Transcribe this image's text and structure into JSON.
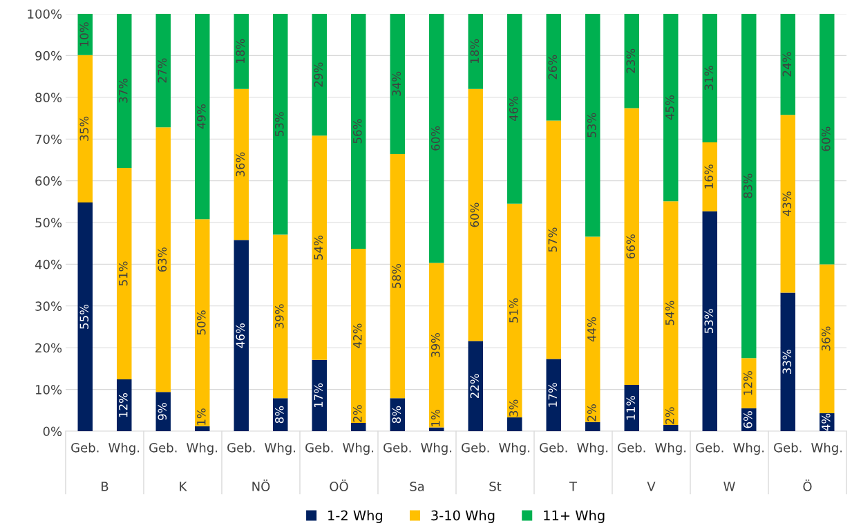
{
  "chart_data": {
    "type": "bar",
    "stacked": true,
    "categories": [
      "Geb.",
      "Whg.",
      "Geb.",
      "Whg.",
      "Geb.",
      "Whg.",
      "Geb.",
      "Whg.",
      "Geb.",
      "Whg.",
      "Geb.",
      "Whg.",
      "Geb.",
      "Whg.",
      "Geb.",
      "Whg.",
      "Geb.",
      "Whg.",
      "Geb.",
      "Whg."
    ],
    "annotations": [
      "B",
      "K",
      "NÖ",
      "OÖ",
      "Sa",
      "St",
      "T",
      "V",
      "W",
      "Ö"
    ],
    "series": [
      {
        "name": "1-2 Whg",
        "color": "#002060",
        "values": [
          54.8,
          12.4,
          9.4,
          1.2,
          45.8,
          7.9,
          17.1,
          2.0,
          7.9,
          0.9,
          21.6,
          3.3,
          17.3,
          2.2,
          11.1,
          1.5,
          52.7,
          5.5,
          33.2,
          4.3
        ],
        "value_labels": [
          "55%",
          "12%",
          "9%",
          "1%",
          "46%",
          "8%",
          "17%",
          "2%",
          "8%",
          "1%",
          "22%",
          "3%",
          "17%",
          "2%",
          "11%",
          "2%",
          "53%",
          "6%",
          "33%",
          "4%"
        ]
      },
      {
        "name": "3-10 Whg",
        "color": "#ffc000",
        "values": [
          35.3,
          50.7,
          63.4,
          49.6,
          36.2,
          39.2,
          53.7,
          41.7,
          58.5,
          39.4,
          60.4,
          51.2,
          57.1,
          44.4,
          66.3,
          53.6,
          16.5,
          12.0,
          42.6,
          35.7
        ],
        "value_labels": [
          "35%",
          "51%",
          "63%",
          "50%",
          "36%",
          "39%",
          "54%",
          "42%",
          "58%",
          "39%",
          "60%",
          "51%",
          "57%",
          "44%",
          "66%",
          "54%",
          "16%",
          "12%",
          "43%",
          "36%"
        ]
      },
      {
        "name": "11+ Whg",
        "color": "#00b050",
        "values": [
          9.9,
          36.9,
          27.2,
          49.2,
          18.0,
          52.9,
          29.2,
          56.3,
          33.6,
          59.7,
          18.0,
          45.5,
          25.6,
          53.4,
          22.6,
          44.9,
          30.8,
          82.5,
          24.2,
          60.0
        ],
        "value_labels": [
          "10%",
          "37%",
          "27%",
          "49%",
          "18%",
          "53%",
          "29%",
          "56%",
          "34%",
          "60%",
          "18%",
          "46%",
          "26%",
          "53%",
          "23%",
          "45%",
          "31%",
          "83%",
          "24%",
          "60%"
        ]
      }
    ],
    "ylim": [
      0,
      100
    ],
    "yticks": [
      {
        "value": 0,
        "label": "0%"
      },
      {
        "value": 10,
        "label": "10%"
      },
      {
        "value": 20,
        "label": "20%"
      },
      {
        "value": 30,
        "label": "30%"
      },
      {
        "value": 40,
        "label": "40%"
      },
      {
        "value": 50,
        "label": "50%"
      },
      {
        "value": 60,
        "label": "60%"
      },
      {
        "value": 70,
        "label": "70%"
      },
      {
        "value": 80,
        "label": "80%"
      },
      {
        "value": 90,
        "label": "90%"
      },
      {
        "value": 100,
        "label": "100%"
      }
    ],
    "grid": "y",
    "legend": "bottom"
  }
}
